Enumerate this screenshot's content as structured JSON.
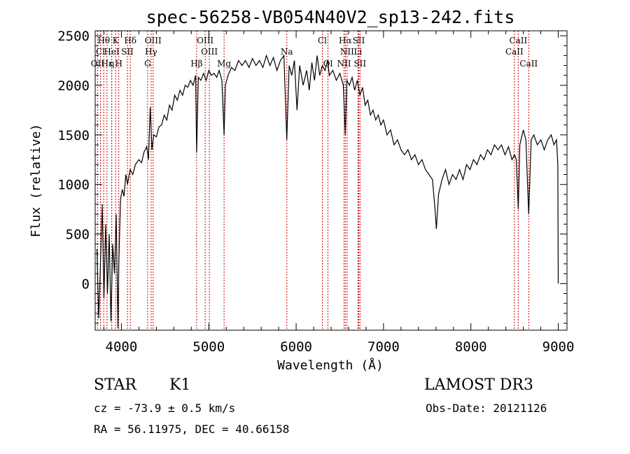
{
  "chart_data": {
    "type": "line",
    "title": "spec-56258-VB054N40V2_sp13-242.fits",
    "xlabel": "Wavelength (Å)",
    "ylabel": "Flux (relative)",
    "xlim": [
      3700,
      9100
    ],
    "ylim": [
      -470,
      2550
    ],
    "xticks": [
      4000,
      5000,
      6000,
      7000,
      8000,
      9000
    ],
    "yticks": [
      0,
      500,
      1000,
      1500,
      2000,
      2500
    ],
    "grid": false,
    "line_color": "#000000",
    "marker_color": "#cc0000",
    "series": [
      {
        "points": [
          [
            3720,
            350
          ],
          [
            3740,
            -350
          ],
          [
            3760,
            200
          ],
          [
            3780,
            800
          ],
          [
            3800,
            -150
          ],
          [
            3820,
            600
          ],
          [
            3840,
            -100
          ],
          [
            3860,
            500
          ],
          [
            3880,
            -380
          ],
          [
            3900,
            400
          ],
          [
            3920,
            100
          ],
          [
            3940,
            700
          ],
          [
            3960,
            -450
          ],
          [
            3970,
            200
          ],
          [
            3990,
            850
          ],
          [
            4010,
            950
          ],
          [
            4030,
            880
          ],
          [
            4050,
            1100
          ],
          [
            4070,
            1000
          ],
          [
            4100,
            1150
          ],
          [
            4130,
            1100
          ],
          [
            4160,
            1200
          ],
          [
            4200,
            1250
          ],
          [
            4230,
            1220
          ],
          [
            4260,
            1330
          ],
          [
            4290,
            1380
          ],
          [
            4310,
            1250
          ],
          [
            4330,
            1780
          ],
          [
            4350,
            1350
          ],
          [
            4370,
            1500
          ],
          [
            4400,
            1480
          ],
          [
            4430,
            1580
          ],
          [
            4460,
            1600
          ],
          [
            4490,
            1700
          ],
          [
            4520,
            1650
          ],
          [
            4550,
            1800
          ],
          [
            4580,
            1750
          ],
          [
            4610,
            1900
          ],
          [
            4640,
            1850
          ],
          [
            4670,
            1950
          ],
          [
            4700,
            1900
          ],
          [
            4730,
            2000
          ],
          [
            4760,
            1980
          ],
          [
            4790,
            2050
          ],
          [
            4820,
            2000
          ],
          [
            4850,
            2100
          ],
          [
            4861,
            1320
          ],
          [
            4880,
            2080
          ],
          [
            4910,
            2050
          ],
          [
            4940,
            2120
          ],
          [
            4970,
            2050
          ],
          [
            5000,
            2150
          ],
          [
            5030,
            2100
          ],
          [
            5060,
            2120
          ],
          [
            5090,
            2080
          ],
          [
            5120,
            2150
          ],
          [
            5150,
            2050
          ],
          [
            5175,
            1500
          ],
          [
            5190,
            2000
          ],
          [
            5220,
            2100
          ],
          [
            5260,
            2180
          ],
          [
            5300,
            2150
          ],
          [
            5340,
            2250
          ],
          [
            5380,
            2200
          ],
          [
            5420,
            2250
          ],
          [
            5460,
            2180
          ],
          [
            5500,
            2270
          ],
          [
            5540,
            2200
          ],
          [
            5580,
            2250
          ],
          [
            5620,
            2180
          ],
          [
            5660,
            2300
          ],
          [
            5700,
            2200
          ],
          [
            5740,
            2280
          ],
          [
            5780,
            2150
          ],
          [
            5820,
            2250
          ],
          [
            5860,
            2300
          ],
          [
            5893,
            1450
          ],
          [
            5920,
            2200
          ],
          [
            5950,
            2100
          ],
          [
            5980,
            2250
          ],
          [
            6010,
            1750
          ],
          [
            6040,
            2200
          ],
          [
            6080,
            2000
          ],
          [
            6120,
            2150
          ],
          [
            6150,
            1950
          ],
          [
            6180,
            2230
          ],
          [
            6210,
            2050
          ],
          [
            6240,
            2300
          ],
          [
            6270,
            2100
          ],
          [
            6300,
            2200
          ],
          [
            6330,
            2150
          ],
          [
            6360,
            2250
          ],
          [
            6380,
            2100
          ],
          [
            6420,
            2150
          ],
          [
            6460,
            2050
          ],
          [
            6500,
            2120
          ],
          [
            6540,
            2000
          ],
          [
            6563,
            1500
          ],
          [
            6580,
            2050
          ],
          [
            6610,
            2000
          ],
          [
            6640,
            2080
          ],
          [
            6670,
            1950
          ],
          [
            6700,
            2050
          ],
          [
            6730,
            1900
          ],
          [
            6760,
            1980
          ],
          [
            6790,
            1800
          ],
          [
            6820,
            1850
          ],
          [
            6850,
            1700
          ],
          [
            6880,
            1750
          ],
          [
            6910,
            1650
          ],
          [
            6940,
            1700
          ],
          [
            6970,
            1600
          ],
          [
            7000,
            1650
          ],
          [
            7040,
            1500
          ],
          [
            7080,
            1550
          ],
          [
            7120,
            1400
          ],
          [
            7160,
            1450
          ],
          [
            7200,
            1350
          ],
          [
            7240,
            1300
          ],
          [
            7280,
            1350
          ],
          [
            7320,
            1250
          ],
          [
            7360,
            1300
          ],
          [
            7400,
            1200
          ],
          [
            7440,
            1250
          ],
          [
            7480,
            1150
          ],
          [
            7520,
            1100
          ],
          [
            7560,
            1050
          ],
          [
            7590,
            750
          ],
          [
            7605,
            550
          ],
          [
            7630,
            900
          ],
          [
            7670,
            1050
          ],
          [
            7710,
            1150
          ],
          [
            7750,
            1000
          ],
          [
            7790,
            1100
          ],
          [
            7830,
            1050
          ],
          [
            7870,
            1150
          ],
          [
            7910,
            1050
          ],
          [
            7950,
            1200
          ],
          [
            7990,
            1150
          ],
          [
            8030,
            1250
          ],
          [
            8070,
            1200
          ],
          [
            8110,
            1300
          ],
          [
            8150,
            1250
          ],
          [
            8190,
            1350
          ],
          [
            8230,
            1300
          ],
          [
            8270,
            1400
          ],
          [
            8310,
            1350
          ],
          [
            8350,
            1400
          ],
          [
            8390,
            1300
          ],
          [
            8430,
            1380
          ],
          [
            8470,
            1250
          ],
          [
            8500,
            1300
          ],
          [
            8520,
            1250
          ],
          [
            8542,
            750
          ],
          [
            8560,
            1400
          ],
          [
            8600,
            1550
          ],
          [
            8630,
            1450
          ],
          [
            8662,
            700
          ],
          [
            8690,
            1450
          ],
          [
            8720,
            1500
          ],
          [
            8760,
            1400
          ],
          [
            8800,
            1450
          ],
          [
            8840,
            1350
          ],
          [
            8880,
            1450
          ],
          [
            8920,
            1500
          ],
          [
            8950,
            1400
          ],
          [
            8980,
            1450
          ],
          [
            8995,
            1200
          ],
          [
            9000,
            0
          ]
        ]
      }
    ],
    "line_markers": [
      {
        "label": "Hθ",
        "x": 3798,
        "row": 1
      },
      {
        "label": "K",
        "x": 3934,
        "row": 1
      },
      {
        "label": "Hδ",
        "x": 4102,
        "row": 1
      },
      {
        "label": "OIII",
        "x": 4363,
        "row": 1
      },
      {
        "label": "OIII",
        "x": 4959,
        "row": 1
      },
      {
        "label": "Cl",
        "x": 6300,
        "row": 1
      },
      {
        "label": "Hα",
        "x": 6563,
        "row": 1
      },
      {
        "label": "SII",
        "x": 6717,
        "row": 1
      },
      {
        "label": "CaII",
        "x": 8542,
        "row": 1
      },
      {
        "label": "Cl",
        "x": 3760,
        "row": 2
      },
      {
        "label": "HeI",
        "x": 3889,
        "row": 2
      },
      {
        "label": "SII",
        "x": 4069,
        "row": 2
      },
      {
        "label": "Hγ",
        "x": 4340,
        "row": 2
      },
      {
        "label": "OIII",
        "x": 5007,
        "row": 2
      },
      {
        "label": "Na",
        "x": 5893,
        "row": 2
      },
      {
        "label": "NII",
        "x": 6583,
        "row": 2
      },
      {
        "label": "Li",
        "x": 6708,
        "row": 2
      },
      {
        "label": "CaII",
        "x": 8498,
        "row": 2
      },
      {
        "label": "OII",
        "x": 3727,
        "row": 3
      },
      {
        "label": "Hε",
        "x": 3835,
        "row": 3
      },
      {
        "label": "η",
        "x": 3889,
        "row": 3
      },
      {
        "label": "H",
        "x": 3970,
        "row": 3
      },
      {
        "label": "G",
        "x": 4300,
        "row": 3
      },
      {
        "label": "Hβ",
        "x": 4861,
        "row": 3
      },
      {
        "label": "Mg",
        "x": 5175,
        "row": 3
      },
      {
        "label": "Ol",
        "x": 6364,
        "row": 3
      },
      {
        "label": "NII",
        "x": 6548,
        "row": 3
      },
      {
        "label": "SII",
        "x": 6731,
        "row": 3
      },
      {
        "label": "CaII",
        "x": 8662,
        "row": 3
      }
    ]
  },
  "info": {
    "class": "STAR",
    "subclass": "K1",
    "survey": "LAMOST DR3",
    "cz": "cz = -73.9 ± 0.5 km/s",
    "obsdate": "Obs-Date: 20121126",
    "radec": "RA =  56.11975, DEC =  40.66158"
  }
}
